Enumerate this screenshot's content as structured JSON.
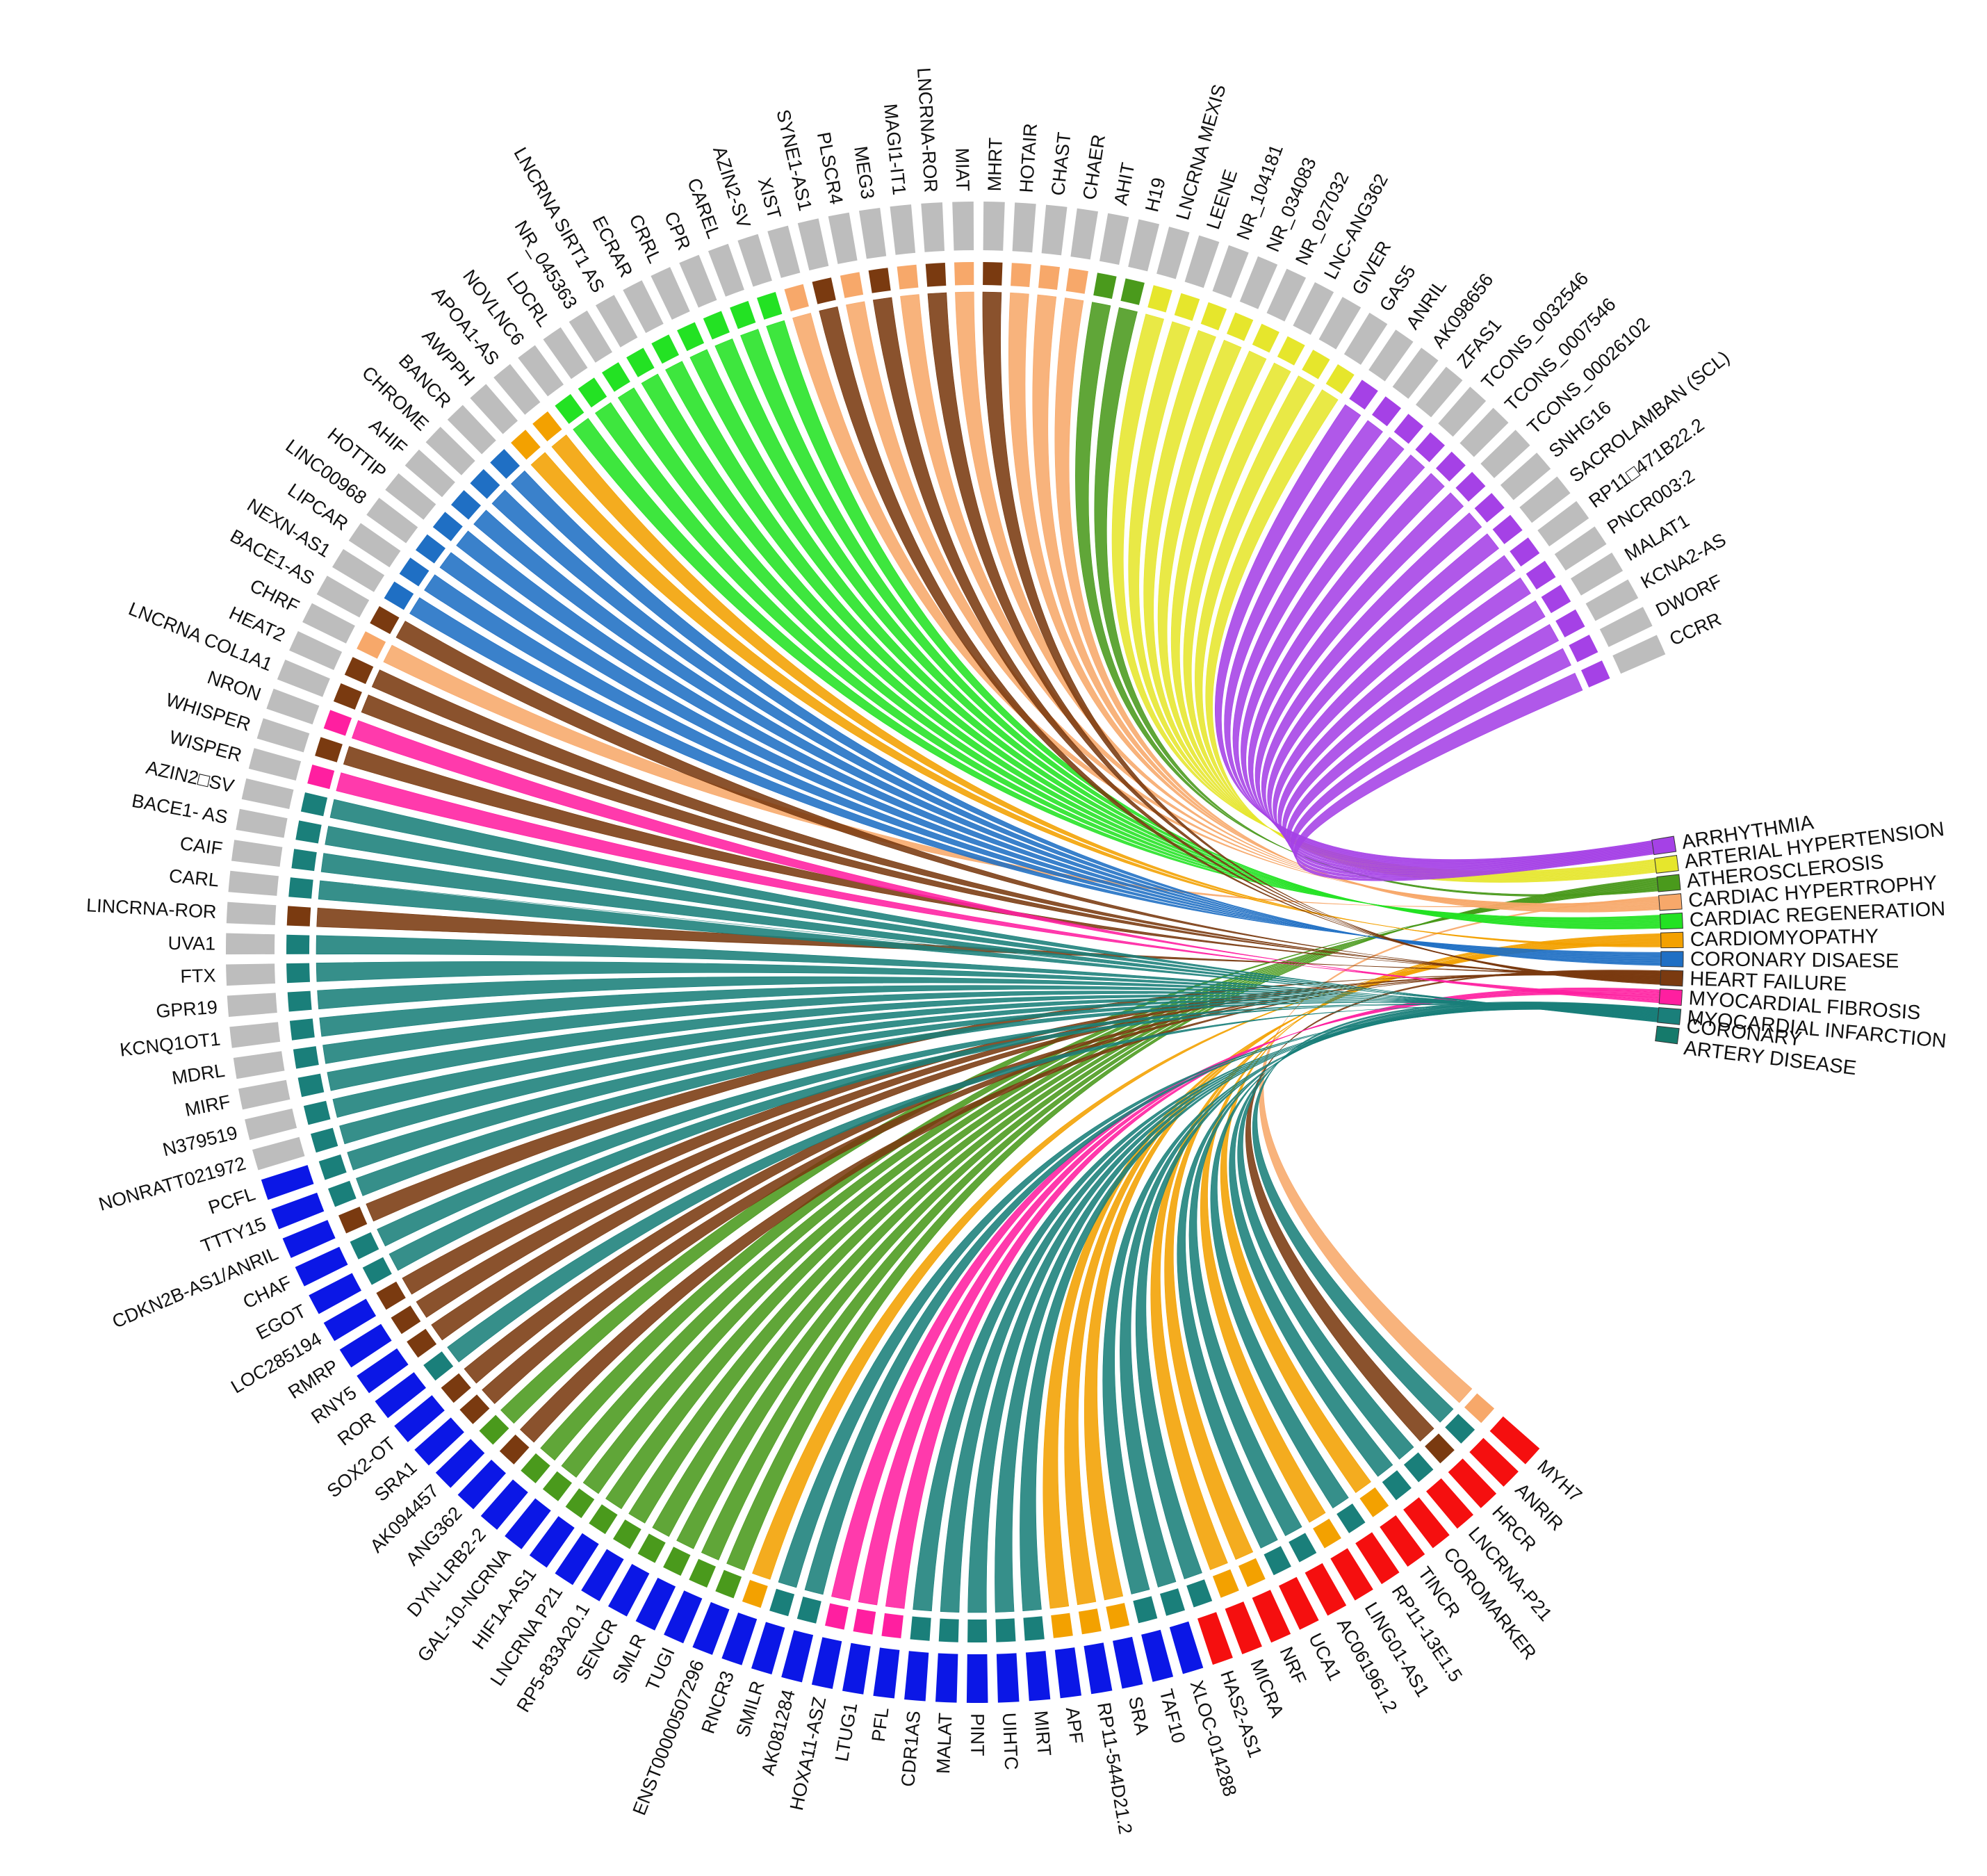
{
  "chart_data": {
    "type": "chord",
    "title": "",
    "disease_colors": {
      "ARRHYTHMIA": "#a541e6",
      "ARTERIAL HYPERTENSION": "#e6e62c",
      "ATHEROSCLEROSIS": "#4a9a1c",
      "CARDIAC HYPERTROPHY": "#f7a86a",
      "CARDIAC REGENERATION": "#23e223",
      "CARDIOMYOPATHY": "#f3a100",
      "CORONARY DISAESE": "#1f6fc4",
      "HEART FAILURE": "#7a3a10",
      "MYOCARDIAL FIBROSIS": "#ff1fa0",
      "MYOCARDIAL INFARCTION": "#1a7f7a",
      "CORONARY ARTERY DISEASE": "#157a6b"
    },
    "group_colors": {
      "red": "#f50f0f",
      "blue": "#0b17e6",
      "gray": "#bdbdbd"
    },
    "diseases": [
      {
        "label": "ARRHYTHMIA"
      },
      {
        "label": "ARTERIAL HYPERTENSION"
      },
      {
        "label": "ATHEROSCLEROSIS"
      },
      {
        "label": "CARDIAC HYPERTROPHY"
      },
      {
        "label": "CARDIAC REGENERATION"
      },
      {
        "label": "CARDIOMYOPATHY"
      },
      {
        "label": "CORONARY DISAESE"
      },
      {
        "label": "HEART FAILURE"
      },
      {
        "label": "MYOCARDIAL FIBROSIS"
      },
      {
        "label": "MYOCARDIAL INFARCTION"
      },
      {
        "label": "CORONARY ARTERY DISEASE",
        "lines": [
          "CORONARY",
          "ARTERY DISEASE"
        ]
      }
    ],
    "lncrnas": [
      {
        "label": "MYH7",
        "group": "red",
        "disease": "CARDIAC HYPERTROPHY"
      },
      {
        "label": "ANRIR",
        "group": "red",
        "disease": "MYOCARDIAL INFARCTION"
      },
      {
        "label": "HRCR",
        "group": "red",
        "disease": "HEART FAILURE"
      },
      {
        "label": "LNCRNA-P21",
        "group": "red",
        "disease": "MYOCARDIAL INFARCTION"
      },
      {
        "label": "COROMARKER",
        "group": "red",
        "disease": "MYOCARDIAL INFARCTION"
      },
      {
        "label": "TINCR",
        "group": "red",
        "disease": "CARDIOMYOPATHY"
      },
      {
        "label": "RP11-13E1.5",
        "group": "red",
        "disease": "MYOCARDIAL INFARCTION"
      },
      {
        "label": "LING01-AS1",
        "group": "red",
        "disease": "CARDIOMYOPATHY"
      },
      {
        "label": "AC061961.2",
        "group": "red",
        "disease": "MYOCARDIAL INFARCTION"
      },
      {
        "label": "UCA1",
        "group": "red",
        "disease": "MYOCARDIAL INFARCTION"
      },
      {
        "label": "NRF",
        "group": "red",
        "disease": "CARDIOMYOPATHY"
      },
      {
        "label": "MICRA",
        "group": "red",
        "disease": "CARDIOMYOPATHY"
      },
      {
        "label": "HAS2-AS1",
        "group": "red",
        "disease": "MYOCARDIAL INFARCTION"
      },
      {
        "label": "XLOC-014288",
        "group": "blue",
        "disease": "MYOCARDIAL INFARCTION"
      },
      {
        "label": "TAF10",
        "group": "blue",
        "disease": "MYOCARDIAL INFARCTION"
      },
      {
        "label": "SRA",
        "group": "blue",
        "disease": "CARDIOMYOPATHY"
      },
      {
        "label": "RP11-544D21.2",
        "group": "blue",
        "disease": "CARDIOMYOPATHY"
      },
      {
        "label": "APF",
        "group": "blue",
        "disease": "CARDIOMYOPATHY"
      },
      {
        "label": "MIRT",
        "group": "blue",
        "disease": "MYOCARDIAL INFARCTION"
      },
      {
        "label": "UIHTC",
        "group": "blue",
        "disease": "MYOCARDIAL INFARCTION"
      },
      {
        "label": "PINT",
        "group": "blue",
        "disease": "MYOCARDIAL INFARCTION"
      },
      {
        "label": "MALAT",
        "group": "blue",
        "disease": "MYOCARDIAL INFARCTION"
      },
      {
        "label": "CDR1AS",
        "group": "blue",
        "disease": "MYOCARDIAL INFARCTION"
      },
      {
        "label": "PFL",
        "group": "blue",
        "disease": "MYOCARDIAL FIBROSIS"
      },
      {
        "label": "LTUG1",
        "group": "blue",
        "disease": "MYOCARDIAL FIBROSIS"
      },
      {
        "label": "HOXA11-ASZ",
        "group": "blue",
        "disease": "MYOCARDIAL FIBROSIS"
      },
      {
        "label": "AK081284",
        "group": "blue",
        "disease": "MYOCARDIAL INFARCTION"
      },
      {
        "label": "SMILR",
        "group": "blue",
        "disease": "MYOCARDIAL INFARCTION"
      },
      {
        "label": "RNCR3",
        "group": "blue",
        "disease": "CARDIOMYOPATHY"
      },
      {
        "label": "ENST00000507296",
        "group": "blue",
        "disease": "ATHEROSCLEROSIS"
      },
      {
        "label": "TUGI",
        "group": "blue",
        "disease": "ATHEROSCLEROSIS"
      },
      {
        "label": "SMLR",
        "group": "blue",
        "disease": "ATHEROSCLEROSIS"
      },
      {
        "label": "SENCR",
        "group": "blue",
        "disease": "ATHEROSCLEROSIS"
      },
      {
        "label": "RP5-833A20.1",
        "group": "blue",
        "disease": "ATHEROSCLEROSIS"
      },
      {
        "label": "LNCRNA P21",
        "group": "blue",
        "disease": "ATHEROSCLEROSIS"
      },
      {
        "label": "HIF1A-AS1",
        "group": "blue",
        "disease": "ATHEROSCLEROSIS"
      },
      {
        "label": "GAL-10-NCRNA",
        "group": "blue",
        "disease": "ATHEROSCLEROSIS"
      },
      {
        "label": "DYN-LRB2-2",
        "group": "blue",
        "disease": "ATHEROSCLEROSIS"
      },
      {
        "label": "ANG362",
        "group": "blue",
        "disease": "HEART FAILURE"
      },
      {
        "label": "AK094457",
        "group": "blue",
        "disease": "ATHEROSCLEROSIS"
      },
      {
        "label": "SRA1",
        "group": "blue",
        "disease": "HEART FAILURE"
      },
      {
        "label": "SOX2-OT",
        "group": "blue",
        "disease": "HEART FAILURE"
      },
      {
        "label": "ROR",
        "group": "blue",
        "disease": "MYOCARDIAL INFARCTION"
      },
      {
        "label": "RNY5",
        "group": "blue",
        "disease": "HEART FAILURE"
      },
      {
        "label": "RMRP",
        "group": "blue",
        "disease": "HEART FAILURE"
      },
      {
        "label": "LOC285194",
        "group": "blue",
        "disease": "HEART FAILURE"
      },
      {
        "label": "EGOT",
        "group": "blue",
        "disease": "MYOCARDIAL INFARCTION"
      },
      {
        "label": "CHAF",
        "group": "blue",
        "disease": "MYOCARDIAL INFARCTION"
      },
      {
        "label": "CDKN2B-AS1/ANRIL",
        "group": "blue",
        "disease": "HEART FAILURE"
      },
      {
        "label": "TTTY15",
        "group": "blue",
        "disease": "MYOCARDIAL INFARCTION"
      },
      {
        "label": "PCFL",
        "group": "blue",
        "disease": "MYOCARDIAL INFARCTION"
      },
      {
        "label": "NONRATT021972",
        "group": "gray",
        "disease": "MYOCARDIAL INFARCTION"
      },
      {
        "label": "N379519",
        "group": "gray",
        "disease": "MYOCARDIAL INFARCTION"
      },
      {
        "label": "MIRF",
        "group": "gray",
        "disease": "MYOCARDIAL INFARCTION"
      },
      {
        "label": "MDRL",
        "group": "gray",
        "disease": "MYOCARDIAL INFARCTION"
      },
      {
        "label": "KCNQ1OT1",
        "group": "gray",
        "disease": "MYOCARDIAL INFARCTION"
      },
      {
        "label": "GPR19",
        "group": "gray",
        "disease": "MYOCARDIAL INFARCTION"
      },
      {
        "label": "FTX",
        "group": "gray",
        "disease": "MYOCARDIAL INFARCTION"
      },
      {
        "label": "UVA1",
        "group": "gray",
        "disease": "MYOCARDIAL INFARCTION"
      },
      {
        "label": "LINCRNA-ROR",
        "group": "gray",
        "disease": "HEART FAILURE"
      },
      {
        "label": "CARL",
        "group": "gray",
        "disease": "MYOCARDIAL INFARCTION"
      },
      {
        "label": "CAIF",
        "group": "gray",
        "disease": "MYOCARDIAL INFARCTION"
      },
      {
        "label": "BACE1- AS",
        "group": "gray",
        "disease": "MYOCARDIAL INFARCTION"
      },
      {
        "label": "AZIN2□SV",
        "group": "gray",
        "disease": "MYOCARDIAL INFARCTION"
      },
      {
        "label": "WISPER",
        "group": "gray",
        "disease": "MYOCARDIAL FIBROSIS"
      },
      {
        "label": "WHISPER",
        "group": "gray",
        "disease": "HEART FAILURE"
      },
      {
        "label": "NRON",
        "group": "gray",
        "disease": "MYOCARDIAL FIBROSIS"
      },
      {
        "label": "LNCRNA COL1A1",
        "group": "gray",
        "disease": "HEART FAILURE"
      },
      {
        "label": "HEAT2",
        "group": "gray",
        "disease": "HEART FAILURE"
      },
      {
        "label": "CHRF",
        "group": "gray",
        "disease": "CARDIAC HYPERTROPHY"
      },
      {
        "label": "BACE1-AS",
        "group": "gray",
        "disease": "HEART FAILURE"
      },
      {
        "label": "NEXN-AS1",
        "group": "gray",
        "disease": "CORONARY DISAESE"
      },
      {
        "label": "LIPCAR",
        "group": "gray",
        "disease": "CORONARY DISAESE"
      },
      {
        "label": "LINC00968",
        "group": "gray",
        "disease": "CORONARY DISAESE"
      },
      {
        "label": "HOTTIP",
        "group": "gray",
        "disease": "CORONARY DISAESE"
      },
      {
        "label": "AHIF",
        "group": "gray",
        "disease": "CORONARY DISAESE"
      },
      {
        "label": "CHROME",
        "group": "gray",
        "disease": "CORONARY DISAESE"
      },
      {
        "label": "BANCR",
        "group": "gray",
        "disease": "CORONARY DISAESE"
      },
      {
        "label": "AWPPH",
        "group": "gray",
        "disease": "CARDIOMYOPATHY"
      },
      {
        "label": "APOA1-AS",
        "group": "gray",
        "disease": "CARDIOMYOPATHY"
      },
      {
        "label": "NOVLNC6",
        "group": "gray",
        "disease": "CARDIAC REGENERATION"
      },
      {
        "label": "LDCRL",
        "group": "gray",
        "disease": "CARDIAC REGENERATION"
      },
      {
        "label": "NR_045363",
        "group": "gray",
        "disease": "CARDIAC REGENERATION"
      },
      {
        "label": "LNCRNA SIRT1 AS",
        "group": "gray",
        "disease": "CARDIAC REGENERATION"
      },
      {
        "label": "ECRAR",
        "group": "gray",
        "disease": "CARDIAC REGENERATION"
      },
      {
        "label": "CRRL",
        "group": "gray",
        "disease": "CARDIAC REGENERATION"
      },
      {
        "label": "CPR",
        "group": "gray",
        "disease": "CARDIAC REGENERATION"
      },
      {
        "label": "CAREL",
        "group": "gray",
        "disease": "CARDIAC REGENERATION"
      },
      {
        "label": "AZIN2-SV",
        "group": "gray",
        "disease": "CARDIAC REGENERATION"
      },
      {
        "label": "XIST",
        "group": "gray",
        "disease": "CARDIAC HYPERTROPHY"
      },
      {
        "label": "SYNE1-AS1",
        "group": "gray",
        "disease": "HEART FAILURE"
      },
      {
        "label": "PLSCR4",
        "group": "gray",
        "disease": "CARDIAC HYPERTROPHY"
      },
      {
        "label": "MEG3",
        "group": "gray",
        "disease": "HEART FAILURE"
      },
      {
        "label": "MAGI1-IT1",
        "group": "gray",
        "disease": "CARDIAC HYPERTROPHY"
      },
      {
        "label": "LNCRNA-ROR",
        "group": "gray",
        "disease": "HEART FAILURE"
      },
      {
        "label": "MIAT",
        "group": "gray",
        "disease": "CARDIAC HYPERTROPHY"
      },
      {
        "label": "MHRT",
        "group": "gray",
        "disease": "HEART FAILURE"
      },
      {
        "label": "HOTAIR",
        "group": "gray",
        "disease": "CARDIAC HYPERTROPHY"
      },
      {
        "label": "CHAST",
        "group": "gray",
        "disease": "CARDIAC HYPERTROPHY"
      },
      {
        "label": "CHAER",
        "group": "gray",
        "disease": "CARDIAC HYPERTROPHY"
      },
      {
        "label": "AHIT",
        "group": "gray",
        "disease": "ATHEROSCLEROSIS"
      },
      {
        "label": "H19",
        "group": "gray",
        "disease": "ATHEROSCLEROSIS"
      },
      {
        "label": "LNCRNA MEXIS",
        "group": "gray",
        "disease": "ARTERIAL HYPERTENSION"
      },
      {
        "label": "LEENE",
        "group": "gray",
        "disease": "ARTERIAL HYPERTENSION"
      },
      {
        "label": "NR_104181",
        "group": "gray",
        "disease": "ARTERIAL HYPERTENSION"
      },
      {
        "label": "NR_034083",
        "group": "gray",
        "disease": "ARTERIAL HYPERTENSION"
      },
      {
        "label": "NR_027032",
        "group": "gray",
        "disease": "ARTERIAL HYPERTENSION"
      },
      {
        "label": "LNC-ANG362",
        "group": "gray",
        "disease": "ARTERIAL HYPERTENSION"
      },
      {
        "label": "GIVER",
        "group": "gray",
        "disease": "ARTERIAL HYPERTENSION"
      },
      {
        "label": "GAS5",
        "group": "gray",
        "disease": "ARTERIAL HYPERTENSION"
      },
      {
        "label": "ANRIL",
        "group": "gray",
        "disease": "ARRHYTHMIA"
      },
      {
        "label": "AK098656",
        "group": "gray",
        "disease": "ARRHYTHMIA"
      },
      {
        "label": "ZFAS1",
        "group": "gray",
        "disease": "ARRHYTHMIA"
      },
      {
        "label": "TCONS_0032546",
        "group": "gray",
        "disease": "ARRHYTHMIA"
      },
      {
        "label": "TCONS_0007546",
        "group": "gray",
        "disease": "ARRHYTHMIA"
      },
      {
        "label": "TCONS_00026102",
        "group": "gray",
        "disease": "ARRHYTHMIA"
      },
      {
        "label": "SNHG16",
        "group": "gray",
        "disease": "ARRHYTHMIA"
      },
      {
        "label": "SACROLAMBAN (SCL)",
        "group": "gray",
        "disease": "ARRHYTHMIA"
      },
      {
        "label": "RP11□471B22.2",
        "group": "gray",
        "disease": "ARRHYTHMIA"
      },
      {
        "label": "PNCR003:2",
        "group": "gray",
        "disease": "ARRHYTHMIA"
      },
      {
        "label": "MALAT1",
        "group": "gray",
        "disease": "ARRHYTHMIA"
      },
      {
        "label": "KCNA2-AS",
        "group": "gray",
        "disease": "ARRHYTHMIA"
      },
      {
        "label": "DWORF",
        "group": "gray",
        "disease": "ARRHYTHMIA"
      },
      {
        "label": "CCRR",
        "group": "gray",
        "disease": "ARRHYTHMIA"
      }
    ]
  }
}
